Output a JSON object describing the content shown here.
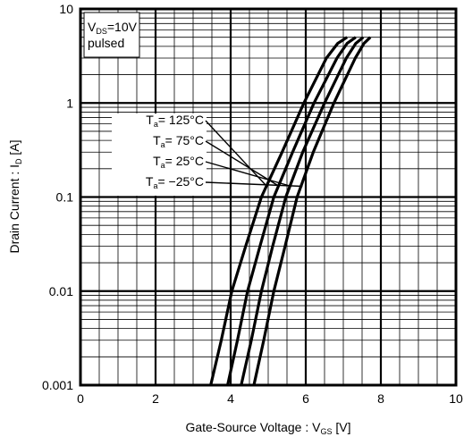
{
  "chart_data": {
    "type": "line",
    "xlabel": {
      "main": "Gate-Source Voltage : V",
      "sub": "GS",
      "unit": " [V]"
    },
    "ylabel": {
      "main": "Drain Current : I",
      "sub": "D",
      "unit": " [A]"
    },
    "xlim": [
      0,
      10
    ],
    "ylim": [
      0.001,
      10
    ],
    "y_scale": "log",
    "grid": true,
    "x_ticks": [
      "0",
      "2",
      "4",
      "6",
      "8",
      "10"
    ],
    "y_ticks": [
      "0.001",
      "0.01",
      "0.1",
      "1",
      "10"
    ],
    "condition_box": {
      "line1_main": "V",
      "line1_sub": "DS",
      "line1_rest": "=10V",
      "line2": "pulsed"
    },
    "series": [
      {
        "name": "Ta= 125°C",
        "label_main": "T",
        "label_sub": "a",
        "label_rest": "= 125°C",
        "x": [
          3.47,
          3.75,
          4.03,
          4.4,
          4.82,
          5.37,
          5.95,
          6.55,
          6.85,
          7.1
        ],
        "y": [
          0.001,
          0.003,
          0.01,
          0.03,
          0.1,
          0.3,
          1,
          3,
          4.3,
          5
        ]
      },
      {
        "name": "Ta= 75°C",
        "label_main": "T",
        "label_sub": "a",
        "label_rest": "= 75°C",
        "x": [
          3.92,
          4.18,
          4.45,
          4.78,
          5.15,
          5.65,
          6.22,
          6.83,
          7.1,
          7.33
        ],
        "y": [
          0.001,
          0.003,
          0.01,
          0.03,
          0.1,
          0.3,
          1,
          3,
          4.3,
          5
        ]
      },
      {
        "name": "Ta= 25°C",
        "label_main": "T",
        "label_sub": "a",
        "label_rest": "= 25°C",
        "x": [
          4.28,
          4.55,
          4.82,
          5.12,
          5.47,
          5.92,
          6.5,
          7.08,
          7.33,
          7.53
        ],
        "y": [
          0.001,
          0.003,
          0.01,
          0.03,
          0.1,
          0.3,
          1,
          3,
          4.3,
          5
        ]
      },
      {
        "name": "Ta= −25°C",
        "label_main": "T",
        "label_sub": "a",
        "label_rest": "= −25°C",
        "x": [
          4.62,
          4.88,
          5.15,
          5.45,
          5.77,
          6.2,
          6.75,
          7.32,
          7.55,
          7.72
        ],
        "y": [
          0.001,
          0.003,
          0.01,
          0.03,
          0.1,
          0.3,
          1,
          3,
          4.3,
          5
        ]
      }
    ]
  }
}
